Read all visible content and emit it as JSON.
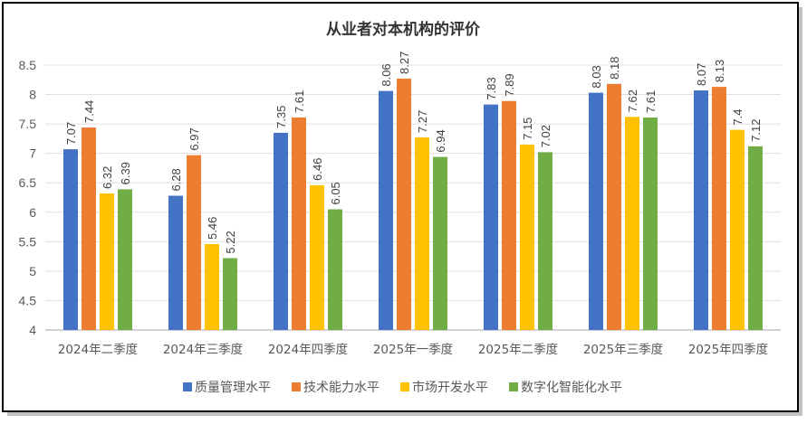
{
  "chart_data": {
    "type": "bar",
    "title": "从业者对本机构的评价",
    "xlabel": "",
    "ylabel": "",
    "ylim": [
      4,
      8.5
    ],
    "yticks": [
      "4",
      "4.5",
      "5",
      "5.5",
      "6",
      "6.5",
      "7",
      "7.5",
      "8",
      "8.5"
    ],
    "grid": true,
    "legend_position": "bottom",
    "categories": [
      "2024年二季度",
      "2024年三季度",
      "2024年四季度",
      "2025年一季度",
      "2025年二季度",
      "2025年三季度",
      "2025年四季度"
    ],
    "series": [
      {
        "name": "质量管理水平",
        "color": "#4472C4",
        "values": [
          7.07,
          6.28,
          7.35,
          8.06,
          7.83,
          8.03,
          8.07
        ]
      },
      {
        "name": "技术能力水平",
        "color": "#ED7D31",
        "values": [
          7.44,
          6.97,
          7.61,
          8.27,
          7.89,
          8.18,
          8.13
        ]
      },
      {
        "name": "市场开发水平",
        "color": "#FFC000",
        "values": [
          6.32,
          5.46,
          6.46,
          7.27,
          7.15,
          7.62,
          7.4
        ]
      },
      {
        "name": "数字化智能化水平",
        "color": "#70AD47",
        "values": [
          6.39,
          5.22,
          6.05,
          6.94,
          7.02,
          7.61,
          7.12
        ]
      }
    ]
  }
}
